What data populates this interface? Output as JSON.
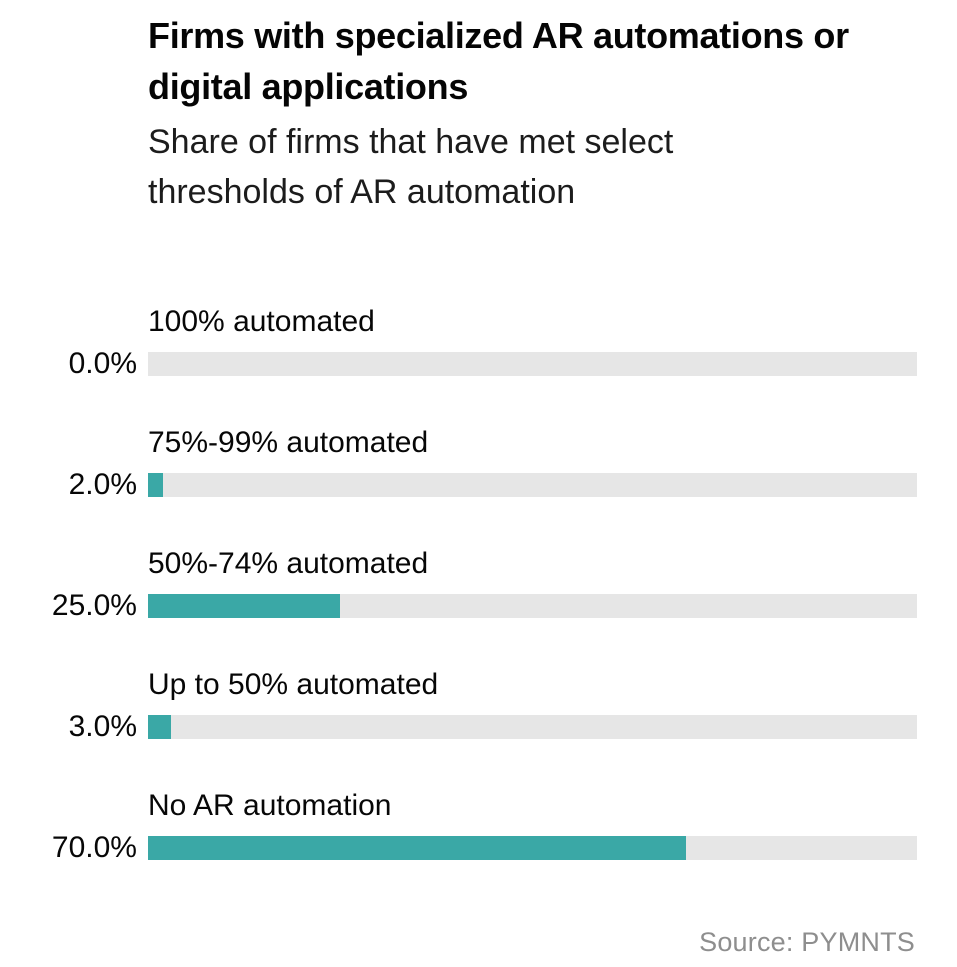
{
  "chart_data": {
    "type": "bar",
    "orientation": "horizontal",
    "title": "Firms with specialized AR automations or digital applications",
    "subtitle": "Share of firms that have met select thresholds of AR automation",
    "categories": [
      "100% automated",
      "75%-99% automated",
      "50%-74% automated",
      "Up to 50% automated",
      "No AR automation"
    ],
    "values": [
      0.0,
      2.0,
      25.0,
      3.0,
      70.0
    ],
    "value_labels": [
      "0.0%",
      "2.0%",
      "25.0%",
      "3.0%",
      "70.0%"
    ],
    "xlim": [
      0,
      100
    ],
    "grid": false,
    "legend": "none",
    "bar_color": "#3aa8a6",
    "track_color": "#e6e6e6",
    "source": "Source: PYMNTS"
  }
}
